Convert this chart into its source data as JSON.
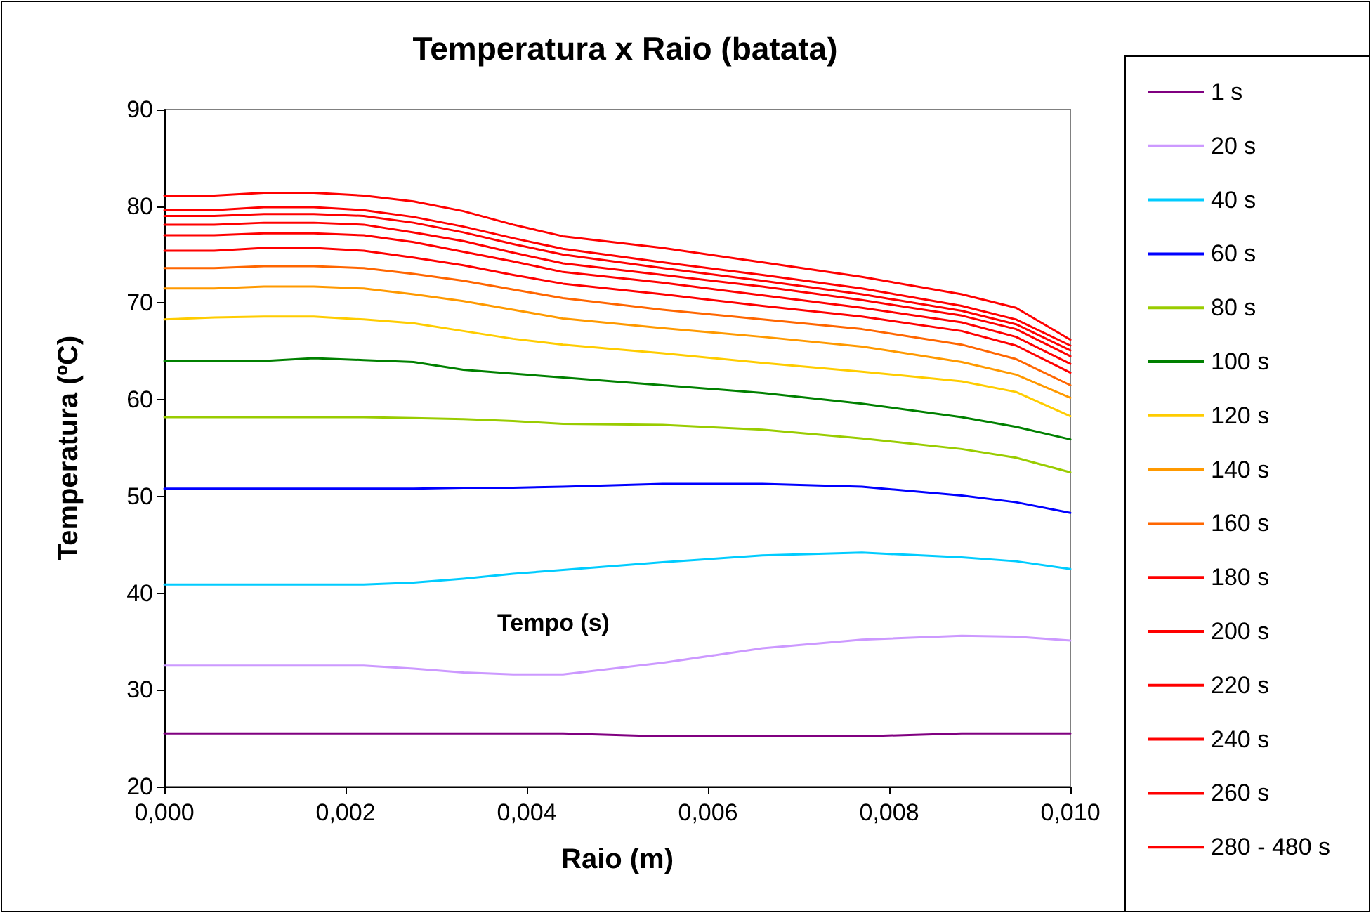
{
  "chart_data": {
    "type": "line",
    "title": "Temperatura x Raio (batata)",
    "xlabel": "Raio (m)",
    "ylabel": "Temperatura (ºC)",
    "annotations": [
      "Tempo (s)"
    ],
    "x": [
      0,
      0.00055,
      0.0011,
      0.00165,
      0.0022,
      0.00275,
      0.0033,
      0.00385,
      0.0044,
      0.0055,
      0.0066,
      0.0077,
      0.0088,
      0.0094,
      0.01
    ],
    "xlim": [
      0,
      0.01
    ],
    "xticks": [
      {
        "value": 0,
        "label": "0,000"
      },
      {
        "value": 0.002,
        "label": "0,002"
      },
      {
        "value": 0.004,
        "label": "0,004"
      },
      {
        "value": 0.006,
        "label": "0,006"
      },
      {
        "value": 0.008,
        "label": "0,008"
      },
      {
        "value": 0.01,
        "label": "0,010"
      }
    ],
    "ylim": [
      20,
      90
    ],
    "yticks": [
      20,
      30,
      40,
      50,
      60,
      70,
      80,
      90
    ],
    "grid": false,
    "legend": "right",
    "line_style": "solid",
    "marker": "none",
    "series": [
      {
        "name": "1 s",
        "color": "#800080",
        "values": [
          25.5,
          25.5,
          25.5,
          25.5,
          25.5,
          25.5,
          25.5,
          25.5,
          25.5,
          25.2,
          25.2,
          25.2,
          25.5,
          25.5,
          25.5
        ]
      },
      {
        "name": "20 s",
        "color": "#cc99ff",
        "values": [
          32.5,
          32.5,
          32.5,
          32.5,
          32.5,
          32.2,
          31.8,
          31.6,
          31.6,
          32.8,
          34.3,
          35.2,
          35.6,
          35.5,
          35.1
        ]
      },
      {
        "name": "40 s",
        "color": "#00ccff",
        "values": [
          40.9,
          40.9,
          40.9,
          40.9,
          40.9,
          41.1,
          41.5,
          42.0,
          42.4,
          43.2,
          43.9,
          44.2,
          43.7,
          43.3,
          42.5
        ]
      },
      {
        "name": "60 s",
        "color": "#0000ff",
        "values": [
          50.8,
          50.8,
          50.8,
          50.8,
          50.8,
          50.8,
          50.9,
          50.9,
          51.0,
          51.3,
          51.3,
          51.0,
          50.1,
          49.4,
          48.3
        ]
      },
      {
        "name": "80 s",
        "color": "#99cc00",
        "values": [
          58.2,
          58.2,
          58.2,
          58.2,
          58.2,
          58.1,
          58.0,
          57.8,
          57.5,
          57.4,
          56.9,
          56.0,
          54.9,
          54.0,
          52.5
        ]
      },
      {
        "name": "100 s",
        "color": "#008000",
        "values": [
          64.0,
          64.0,
          64.0,
          64.3,
          64.1,
          63.9,
          63.1,
          62.7,
          62.3,
          61.5,
          60.7,
          59.6,
          58.2,
          57.2,
          55.9
        ]
      },
      {
        "name": "120 s",
        "color": "#ffcc00",
        "values": [
          68.3,
          68.5,
          68.6,
          68.6,
          68.3,
          67.9,
          67.1,
          66.3,
          65.7,
          64.8,
          63.8,
          62.9,
          61.9,
          60.8,
          58.3
        ]
      },
      {
        "name": "140 s",
        "color": "#ff9900",
        "values": [
          71.5,
          71.5,
          71.7,
          71.7,
          71.5,
          70.9,
          70.2,
          69.3,
          68.4,
          67.4,
          66.5,
          65.5,
          63.9,
          62.6,
          60.2
        ]
      },
      {
        "name": "160 s",
        "color": "#ff6600",
        "values": [
          73.6,
          73.6,
          73.8,
          73.8,
          73.6,
          73.0,
          72.3,
          71.4,
          70.5,
          69.3,
          68.3,
          67.3,
          65.7,
          64.2,
          61.5
        ]
      },
      {
        "name": "180 s",
        "color": "#ff0000",
        "values": [
          75.4,
          75.4,
          75.7,
          75.7,
          75.4,
          74.7,
          73.9,
          72.9,
          72.0,
          70.9,
          69.7,
          68.6,
          67.1,
          65.6,
          62.8
        ]
      },
      {
        "name": "200 s",
        "color": "#ff0000",
        "values": [
          77.0,
          77.0,
          77.2,
          77.2,
          77.0,
          76.3,
          75.3,
          74.3,
          73.2,
          72.1,
          70.8,
          69.5,
          68.0,
          66.5,
          63.7
        ]
      },
      {
        "name": "220 s",
        "color": "#ff0000",
        "values": [
          78.1,
          78.1,
          78.3,
          78.3,
          78.1,
          77.3,
          76.4,
          75.2,
          74.1,
          72.9,
          71.7,
          70.3,
          68.7,
          67.3,
          64.5
        ]
      },
      {
        "name": "240 s",
        "color": "#ff0000",
        "values": [
          79.0,
          79.0,
          79.2,
          79.2,
          79.0,
          78.3,
          77.3,
          76.1,
          75.0,
          73.6,
          72.3,
          70.9,
          69.2,
          67.8,
          65.1
        ]
      },
      {
        "name": "260 s",
        "color": "#ff0000",
        "values": [
          79.6,
          79.6,
          79.9,
          79.9,
          79.6,
          78.9,
          77.9,
          76.7,
          75.6,
          74.2,
          72.9,
          71.5,
          69.7,
          68.3,
          65.6
        ]
      },
      {
        "name": "280 - 480 s",
        "color": "#ff0000",
        "values": [
          81.1,
          81.1,
          81.4,
          81.4,
          81.1,
          80.5,
          79.5,
          78.1,
          76.9,
          75.7,
          74.2,
          72.7,
          70.9,
          69.5,
          66.2
        ]
      }
    ]
  }
}
